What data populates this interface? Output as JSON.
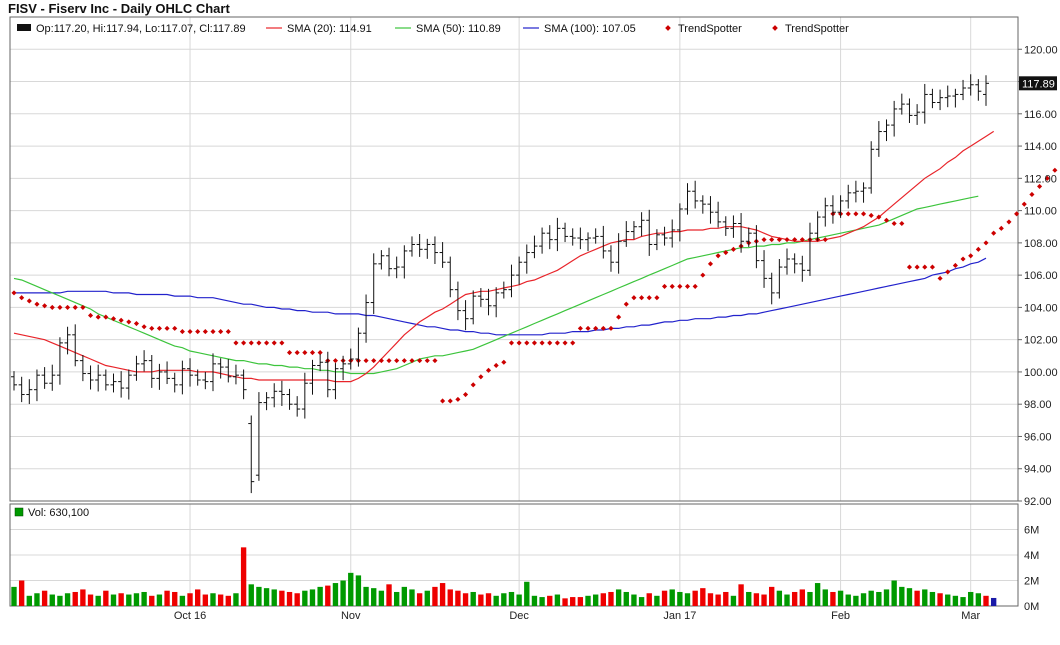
{
  "title": "FISV - Fiserv Inc - Daily OHLC Chart",
  "legend": {
    "ohlc": "Op:117.20, Hi:117.94, Lo:117.07, Cl:117.89",
    "sma20": "SMA (20): 114.91",
    "sma50": "SMA (50): 110.89",
    "sma100": "SMA (100): 107.05",
    "trend1": "TrendSpotter",
    "trend2": "TrendSpotter"
  },
  "volume_legend": "Vol: 630,100",
  "colors": {
    "sma20": "#e8242a",
    "sma50": "#3cc43c",
    "sma100": "#2222cc",
    "trend": "#cc0000",
    "vol_up": "#009900",
    "vol_down": "#ee0000",
    "vol_last": "#1a1aa8",
    "grid": "#d8d8d8",
    "bar": "#111111"
  },
  "chart_data": [
    {
      "type": "ohlc",
      "ylim": [
        92,
        122
      ],
      "yticks": [
        "92.00",
        "94.00",
        "96.00",
        "98.00",
        "100.00",
        "102.00",
        "104.00",
        "106.00",
        "108.00",
        "110.00",
        "112.00",
        "114.00",
        "116.00",
        "118.00",
        "120.00"
      ],
      "xticks": [
        "Oct 16",
        "Nov",
        "Dec",
        "Jan 17",
        "Feb",
        "Mar"
      ],
      "last_close": "117.89",
      "close": [
        99.2,
        98.6,
        98.9,
        99.8,
        99.3,
        99.8,
        101.8,
        102.3,
        100.7,
        99.9,
        99.5,
        99.8,
        99.2,
        99.4,
        99.0,
        99.8,
        100.5,
        100.7,
        99.6,
        100.0,
        99.6,
        99.2,
        100.2,
        99.8,
        99.5,
        99.4,
        100.5,
        100.3,
        99.7,
        99.8,
        98.9,
        93.2,
        98.1,
        98.4,
        98.8,
        98.6,
        98.0,
        97.7,
        99.3,
        100.4,
        100.6,
        98.9,
        100.2,
        100.5,
        100.8,
        102.4,
        104.3,
        106.7,
        107.2,
        106.4,
        106.5,
        107.5,
        107.9,
        107.6,
        107.9,
        107.4,
        106.8,
        105.1,
        103.8,
        103.3,
        104.7,
        104.5,
        104.1,
        104.9,
        105.1,
        106.0,
        106.8,
        107.4,
        107.8,
        108.6,
        108.2,
        108.9,
        108.4,
        108.3,
        108.2,
        108.3,
        108.4,
        107.5,
        106.8,
        108.1,
        108.7,
        109.0,
        109.4,
        107.9,
        108.5,
        108.3,
        108.8,
        110.1,
        111.2,
        110.6,
        110.4,
        109.9,
        109.3,
        108.9,
        109.2,
        108.1,
        108.6,
        106.9,
        105.8,
        104.9,
        106.5,
        107.0,
        106.7,
        106.3,
        108.6,
        109.6,
        110.3,
        109.9,
        110.6,
        111.1,
        111.2,
        111.4,
        113.8,
        114.9,
        115.3,
        116.3,
        116.6,
        115.9,
        116.1,
        117.2,
        116.7,
        117.0,
        117.1,
        117.2,
        117.6,
        117.8,
        117.4,
        117.89
      ],
      "open": [
        99.7,
        99.2,
        98.6,
        98.9,
        99.8,
        99.3,
        99.8,
        101.8,
        102.3,
        100.7,
        99.9,
        99.5,
        99.8,
        99.2,
        99.4,
        99.0,
        99.8,
        100.5,
        100.7,
        99.6,
        100.0,
        99.6,
        99.2,
        100.2,
        99.8,
        99.5,
        99.4,
        100.5,
        100.3,
        99.7,
        99.8,
        96.8,
        93.6,
        98.1,
        98.4,
        98.8,
        98.6,
        98.0,
        97.7,
        99.3,
        100.4,
        100.6,
        98.9,
        100.2,
        100.5,
        100.8,
        102.4,
        104.3,
        106.7,
        107.2,
        106.4,
        106.5,
        107.5,
        107.9,
        107.6,
        107.9,
        107.4,
        106.8,
        105.1,
        103.8,
        103.3,
        104.7,
        104.5,
        104.1,
        104.9,
        105.1,
        106.0,
        106.8,
        107.4,
        107.8,
        108.6,
        108.2,
        108.9,
        108.4,
        108.3,
        108.2,
        108.3,
        108.4,
        107.5,
        106.8,
        108.1,
        108.7,
        109.0,
        109.4,
        107.9,
        108.5,
        108.3,
        108.8,
        110.1,
        111.2,
        110.6,
        110.4,
        109.9,
        109.3,
        108.9,
        109.2,
        108.1,
        108.6,
        106.9,
        105.8,
        104.9,
        106.5,
        107.0,
        106.7,
        106.3,
        108.6,
        109.6,
        110.3,
        109.9,
        110.6,
        111.1,
        111.2,
        111.4,
        113.8,
        114.9,
        115.3,
        116.3,
        116.6,
        115.9,
        116.1,
        117.2,
        116.7,
        117.0,
        117.1,
        117.2,
        117.6,
        117.8,
        117.2
      ],
      "sma20": [
        102.4,
        102.3,
        102.2,
        102.1,
        102.0,
        101.8,
        101.6,
        101.4,
        101.2,
        101.0,
        100.8,
        100.6,
        100.4,
        100.3,
        100.2,
        100.1,
        100.0,
        100.0,
        100.0,
        100.1,
        100.1,
        100.1,
        100.1,
        100.1,
        100.0,
        100.0,
        100.0,
        99.9,
        99.8,
        99.7,
        99.6,
        99.6,
        99.5,
        99.5,
        99.5,
        99.5,
        99.5,
        99.5,
        99.5,
        99.5,
        99.5,
        99.5,
        99.4,
        99.4,
        99.4,
        99.6,
        99.9,
        100.3,
        100.8,
        101.3,
        101.8,
        102.3,
        102.7,
        103.1,
        103.4,
        103.7,
        103.9,
        104.2,
        104.5,
        104.8,
        104.9,
        105.0,
        105.0,
        105.1,
        105.2,
        105.3,
        105.4,
        105.6,
        105.7,
        105.9,
        106.1,
        106.3,
        106.6,
        106.9,
        107.2,
        107.4,
        107.6,
        107.8,
        108.0,
        108.1,
        108.2,
        108.2,
        108.4,
        108.5,
        108.6,
        108.6,
        108.7,
        108.7,
        108.8,
        108.8,
        108.8,
        108.9,
        108.9,
        109.0,
        109.0,
        109.0,
        108.9,
        108.8,
        108.6,
        108.4,
        108.3,
        108.2,
        108.1,
        108.1,
        108.1,
        108.1,
        108.2,
        108.3,
        108.4,
        108.6,
        108.8,
        109.0,
        109.3,
        109.6,
        110.0,
        110.4,
        110.8,
        111.2,
        111.6,
        112.0,
        112.3,
        112.6,
        113.0,
        113.3,
        113.7,
        114.0,
        114.3,
        114.6,
        114.91
      ],
      "sma50": [
        105.8,
        105.7,
        105.5,
        105.3,
        105.1,
        104.9,
        104.7,
        104.5,
        104.3,
        104.1,
        103.9,
        103.6,
        103.4,
        103.2,
        103.0,
        102.8,
        102.6,
        102.4,
        102.2,
        102.0,
        101.8,
        101.6,
        101.5,
        101.3,
        101.2,
        101.1,
        101.0,
        100.9,
        100.8,
        100.7,
        100.7,
        100.6,
        100.5,
        100.5,
        100.4,
        100.4,
        100.3,
        100.3,
        100.2,
        100.2,
        100.1,
        100.1,
        100.0,
        100.0,
        99.9,
        99.9,
        99.9,
        99.9,
        100.0,
        100.1,
        100.2,
        100.4,
        100.6,
        100.8,
        100.9,
        101.0,
        101.0,
        101.1,
        101.2,
        101.3,
        101.4,
        101.6,
        101.8,
        102.0,
        102.2,
        102.4,
        102.6,
        102.8,
        103.0,
        103.2,
        103.4,
        103.6,
        103.8,
        104.0,
        104.2,
        104.4,
        104.6,
        104.8,
        105.0,
        105.2,
        105.4,
        105.6,
        105.8,
        106.0,
        106.2,
        106.4,
        106.6,
        106.8,
        107.0,
        107.1,
        107.2,
        107.3,
        107.4,
        107.5,
        107.6,
        107.7,
        107.7,
        107.8,
        107.8,
        107.9,
        107.9,
        108.0,
        108.0,
        108.1,
        108.2,
        108.3,
        108.4,
        108.5,
        108.6,
        108.7,
        108.8,
        108.9,
        109.0,
        109.1,
        109.3,
        109.5,
        109.7,
        109.9,
        110.1,
        110.2,
        110.3,
        110.4,
        110.5,
        110.6,
        110.7,
        110.8,
        110.89
      ],
      "sma100": [
        104.9,
        104.9,
        104.9,
        104.9,
        104.9,
        104.9,
        104.9,
        105.0,
        105.0,
        105.0,
        105.0,
        105.0,
        105.0,
        104.9,
        104.9,
        104.9,
        104.8,
        104.8,
        104.8,
        104.8,
        104.8,
        104.7,
        104.7,
        104.7,
        104.6,
        104.6,
        104.6,
        104.5,
        104.4,
        104.3,
        104.2,
        104.2,
        104.1,
        104.0,
        104.0,
        103.9,
        103.9,
        103.8,
        103.8,
        103.7,
        103.7,
        103.7,
        103.6,
        103.6,
        103.6,
        103.6,
        103.5,
        103.5,
        103.4,
        103.3,
        103.2,
        103.1,
        103.0,
        102.9,
        102.8,
        102.8,
        102.7,
        102.6,
        102.6,
        102.5,
        102.5,
        102.4,
        102.4,
        102.3,
        102.3,
        102.3,
        102.3,
        102.3,
        102.3,
        102.3,
        102.4,
        102.4,
        102.4,
        102.5,
        102.5,
        102.5,
        102.6,
        102.6,
        102.7,
        102.7,
        102.8,
        102.8,
        102.9,
        102.9,
        103.0,
        103.1,
        103.1,
        103.2,
        103.2,
        103.3,
        103.3,
        103.3,
        103.4,
        103.4,
        103.5,
        103.5,
        103.6,
        103.6,
        103.7,
        103.8,
        103.9,
        104.0,
        104.1,
        104.2,
        104.3,
        104.4,
        104.5,
        104.6,
        104.7,
        104.8,
        104.9,
        105.0,
        105.1,
        105.2,
        105.3,
        105.4,
        105.5,
        105.6,
        105.7,
        105.8,
        106.0,
        106.1,
        106.2,
        106.4,
        106.5,
        106.7,
        106.8,
        107.05
      ],
      "trendspotter": [
        104.9,
        104.6,
        104.4,
        104.2,
        104.1,
        104.0,
        104.0,
        104.0,
        104.0,
        104.0,
        103.5,
        103.4,
        103.4,
        103.3,
        103.2,
        103.1,
        103.0,
        102.8,
        102.7,
        102.7,
        102.7,
        102.7,
        102.5,
        102.5,
        102.5,
        102.5,
        102.5,
        102.5,
        102.5,
        101.8,
        101.8,
        101.8,
        101.8,
        101.8,
        101.8,
        101.8,
        101.2,
        101.2,
        101.2,
        101.2,
        101.2,
        100.7,
        100.7,
        100.7,
        100.7,
        100.7,
        100.7,
        100.7,
        100.7,
        100.7,
        100.7,
        100.7,
        100.7,
        100.7,
        100.7,
        100.7,
        98.2,
        98.2,
        98.3,
        98.6,
        99.2,
        99.7,
        100.1,
        100.4,
        100.6,
        101.8,
        101.8,
        101.8,
        101.8,
        101.8,
        101.8,
        101.8,
        101.8,
        101.8,
        102.7,
        102.7,
        102.7,
        102.7,
        102.7,
        103.4,
        104.2,
        104.6,
        104.6,
        104.6,
        104.6,
        105.3,
        105.3,
        105.3,
        105.3,
        105.3,
        106.0,
        106.7,
        107.2,
        107.4,
        107.6,
        107.8,
        108.0,
        108.1,
        108.2,
        108.2,
        108.2,
        108.2,
        108.2,
        108.2,
        108.2,
        108.2,
        108.2,
        109.8,
        109.8,
        109.8,
        109.8,
        109.8,
        109.7,
        109.6,
        109.4,
        109.2,
        109.2,
        106.5,
        106.5,
        106.5,
        106.5,
        105.8,
        106.2,
        106.6,
        107.0,
        107.2,
        107.6,
        108.0,
        108.6,
        108.9,
        109.3,
        109.8,
        110.4,
        111.0,
        111.5,
        112.0,
        112.5,
        113.0,
        113.4,
        113.4,
        113.4,
        113.9
      ]
    },
    {
      "type": "bar",
      "name": "volume",
      "ylim": [
        0,
        8
      ],
      "yticks": [
        "0M",
        "2M",
        "4M",
        "6M"
      ],
      "values": [
        1.5,
        2.0,
        0.8,
        1.0,
        1.2,
        0.9,
        0.8,
        1.0,
        1.1,
        1.3,
        0.9,
        0.8,
        1.2,
        0.9,
        1.0,
        0.9,
        1.0,
        1.1,
        0.8,
        0.9,
        1.2,
        1.1,
        0.8,
        1.0,
        1.3,
        0.9,
        1.0,
        0.9,
        0.8,
        1.0,
        4.6,
        1.7,
        1.5,
        1.4,
        1.3,
        1.2,
        1.1,
        1.0,
        1.2,
        1.3,
        1.5,
        1.6,
        1.8,
        2.0,
        2.6,
        2.4,
        1.5,
        1.4,
        1.2,
        1.7,
        1.1,
        1.5,
        1.3,
        1.0,
        1.2,
        1.5,
        1.8,
        1.3,
        1.2,
        1.0,
        1.1,
        0.9,
        1.0,
        0.8,
        1.0,
        1.1,
        0.9,
        1.9,
        0.8,
        0.7,
        0.8,
        0.9,
        0.6,
        0.7,
        0.7,
        0.8,
        0.9,
        1.0,
        1.1,
        1.3,
        1.1,
        0.9,
        0.7,
        1.0,
        0.8,
        1.2,
        1.3,
        1.1,
        1.0,
        1.2,
        1.4,
        1.0,
        0.9,
        1.1,
        0.8,
        1.7,
        1.1,
        1.0,
        0.9,
        1.5,
        1.2,
        0.9,
        1.1,
        1.3,
        1.1,
        1.8,
        1.3,
        1.1,
        1.2,
        0.9,
        0.8,
        1.0,
        1.2,
        1.1,
        1.3,
        2.0,
        1.5,
        1.4,
        1.2,
        1.3,
        1.1,
        1.0,
        0.9,
        0.8,
        0.7,
        1.1,
        1.0,
        0.8,
        0.63
      ],
      "up": [
        1,
        0,
        1,
        1,
        0,
        1,
        1,
        1,
        0,
        0,
        0,
        1,
        0,
        1,
        0,
        1,
        1,
        1,
        0,
        1,
        0,
        0,
        1,
        0,
        0,
        0,
        1,
        0,
        0,
        1,
        0,
        1,
        1,
        1,
        1,
        0,
        0,
        0,
        1,
        1,
        1,
        0,
        1,
        1,
        1,
        1,
        1,
        1,
        1,
        0,
        1,
        1,
        1,
        0,
        1,
        0,
        0,
        0,
        0,
        0,
        1,
        0,
        0,
        1,
        1,
        1,
        1,
        1,
        1,
        1,
        0,
        1,
        0,
        0,
        0,
        1,
        1,
        0,
        0,
        1,
        1,
        1,
        1,
        0,
        1,
        0,
        1,
        1,
        1,
        0,
        0,
        0,
        0,
        0,
        1,
        0,
        1,
        0,
        0,
        0,
        1,
        1,
        0,
        0,
        1,
        1,
        1,
        0,
        1,
        1,
        1,
        1,
        1,
        1,
        1,
        1,
        1,
        1,
        0,
        1,
        1,
        0,
        1,
        1,
        1,
        1,
        1,
        0,
        1,
        1
      ]
    }
  ]
}
